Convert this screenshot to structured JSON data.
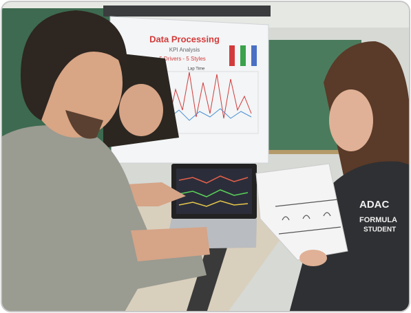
{
  "slide": {
    "title": "Data Processing",
    "subtitle": "KPI Analysis",
    "line": "5 Drivers - 5 Styles",
    "chart_title": "Lap Time"
  },
  "jacket": {
    "brand": "ADAC",
    "line1": "FORMULA",
    "line2": "STUDENT"
  }
}
